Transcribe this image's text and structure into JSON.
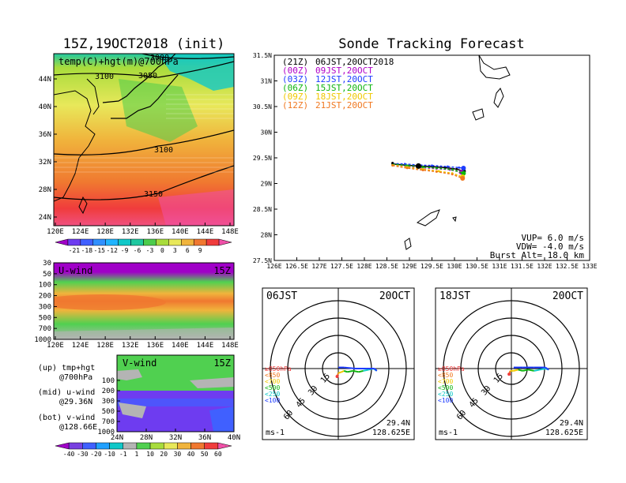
{
  "left_title": "15Z,19OCT2018 (init)",
  "right_title": "Sonde Tracking Forecast",
  "map_panel": {
    "label": "temp(C)+hgt(m)@700hPa",
    "contour_labels": [
      "3000",
      "3050",
      "3100",
      "3100",
      "3150"
    ],
    "lat_ticks": [
      "44N",
      "40N",
      "36N",
      "32N",
      "28N",
      "24N"
    ],
    "lon_ticks": [
      "120E",
      "124E",
      "128E",
      "132E",
      "136E",
      "140E",
      "144E",
      "148E"
    ],
    "colorbar_ticks": [
      "-21",
      "-18",
      "-15",
      "-12",
      "-9",
      "-6",
      "-3",
      "0",
      "3",
      "6",
      "9"
    ],
    "colorbar_colors": [
      "#a000c8",
      "#6e3cf0",
      "#4060ff",
      "#3090ff",
      "#20b4ff",
      "#10c8c8",
      "#20c8a0",
      "#4ccc4c",
      "#a8dc3c",
      "#e8e85a",
      "#f0b43c",
      "#f07830",
      "#f03c3c",
      "#f050a8"
    ]
  },
  "u_panel": {
    "label": "U-wind",
    "time": "15Z",
    "p_ticks": [
      "30",
      "50",
      "100",
      "200",
      "300",
      "500",
      "700",
      "1000"
    ],
    "lon_ticks": [
      "120E",
      "124E",
      "128E",
      "132E",
      "136E",
      "140E",
      "144E",
      "148E"
    ]
  },
  "v_panel": {
    "label": "V-wind",
    "time": "15Z",
    "p_ticks": [
      "100",
      "200",
      "300",
      "500",
      "700",
      "1000"
    ],
    "lat_ticks": [
      "24N",
      "28N",
      "32N",
      "36N",
      "40N"
    ],
    "colorbar_ticks": [
      "-40",
      "-30",
      "-20",
      "-10",
      "-1",
      "1",
      "10",
      "20",
      "30",
      "40",
      "50",
      "60"
    ],
    "colorbar_colors": [
      "#a000c8",
      "#7840e0",
      "#4060ff",
      "#20a0ff",
      "#10c8c8",
      "#b4b4b4",
      "#50d050",
      "#a8dc3c",
      "#e8e85a",
      "#f0b43c",
      "#f07830",
      "#f03c3c",
      "#f050a8"
    ]
  },
  "legend_text": {
    "up1": "(up) tmp+hgt",
    "up2": "@700hPa",
    "mid1": "(mid) u-wind",
    "mid2": "@29.36N",
    "bot1": "(bot) v-wind",
    "bot2": "@128.66E"
  },
  "track_legend": [
    {
      "code": "(21Z)",
      "time": "06JST,20OCT2018",
      "color": "#000000"
    },
    {
      "code": "(00Z)",
      "time": "09JST,20OCT",
      "color": "#b000c8"
    },
    {
      "code": "(03Z)",
      "time": "12JST,20OCT",
      "color": "#1e3cff"
    },
    {
      "code": "(06Z)",
      "time": "15JST,20OCT",
      "color": "#10b410"
    },
    {
      "code": "(09Z)",
      "time": "18JST,20OCT",
      "color": "#f0c800"
    },
    {
      "code": "(12Z)",
      "time": "21JST,20OCT",
      "color": "#f07820"
    }
  ],
  "track_params": {
    "vup": "VUP=  6.0 m/s",
    "vdw": "VDW= -4.0 m/s",
    "burst": "Burst Alt= 18.0 km"
  },
  "chart_data": [
    {
      "type": "line",
      "title": "Sonde Tracking Forecast",
      "xlim": [
        126,
        133
      ],
      "ylim": [
        27.5,
        31.5
      ],
      "x_ticks": [
        "126E",
        "126.5E",
        "127E",
        "127.5E",
        "128E",
        "128.5E",
        "129E",
        "129.5E",
        "130E",
        "130.5E",
        "131E",
        "131.5E",
        "132E",
        "132.5E",
        "133E"
      ],
      "y_ticks": [
        "27.5N",
        "28N",
        "28.5N",
        "29N",
        "29.5N",
        "30N",
        "30.5N",
        "31N",
        "31.5N"
      ],
      "launch_point": {
        "lon": 128.625,
        "lat": 29.4
      },
      "series": [
        {
          "name": "(21Z) 06JST,20OCT2018",
          "color": "#000000",
          "points": [
            [
              128.625,
              29.38
            ],
            [
              128.9,
              29.36
            ],
            [
              129.2,
              29.34
            ],
            [
              129.5,
              29.33
            ],
            [
              129.8,
              29.31
            ],
            [
              130.05,
              29.28
            ],
            [
              130.2,
              29.24
            ]
          ]
        },
        {
          "name": "(00Z) 09JST,20OCT",
          "color": "#b000c8",
          "points": [
            [
              128.625,
              29.37
            ],
            [
              128.95,
              29.33
            ],
            [
              129.25,
              29.31
            ],
            [
              129.6,
              29.29
            ],
            [
              129.9,
              29.27
            ],
            [
              130.15,
              29.22
            ]
          ]
        },
        {
          "name": "(03Z) 12JST,20OCT",
          "color": "#1e3cff",
          "points": [
            [
              128.625,
              29.39
            ],
            [
              128.9,
              29.38
            ],
            [
              129.2,
              29.36
            ],
            [
              129.5,
              29.35
            ],
            [
              129.85,
              29.33
            ],
            [
              130.1,
              29.31
            ],
            [
              130.2,
              29.3
            ]
          ]
        },
        {
          "name": "(06Z) 15JST,20OCT",
          "color": "#10b410",
          "points": [
            [
              128.625,
              29.38
            ],
            [
              128.95,
              29.35
            ],
            [
              129.3,
              29.32
            ],
            [
              129.6,
              29.3
            ],
            [
              129.95,
              29.27
            ],
            [
              130.2,
              29.2
            ]
          ]
        },
        {
          "name": "(09Z) 18JST,20OCT",
          "color": "#f0c800",
          "points": [
            [
              128.625,
              29.36
            ],
            [
              128.95,
              29.32
            ],
            [
              129.3,
              29.28
            ],
            [
              129.65,
              29.24
            ],
            [
              129.95,
              29.2
            ],
            [
              130.18,
              29.13
            ]
          ]
        },
        {
          "name": "(12Z) 21JST,20OCT",
          "color": "#f07820",
          "points": [
            [
              128.625,
              29.35
            ],
            [
              128.95,
              29.3
            ],
            [
              129.3,
              29.26
            ],
            [
              129.6,
              29.23
            ],
            [
              129.95,
              29.18
            ],
            [
              130.18,
              29.1
            ]
          ]
        }
      ]
    },
    {
      "type": "scatter",
      "title": "06JST 20OCT",
      "center_label_lat": "29.4N",
      "center_label_lon": "128.625E",
      "units": "ms-1",
      "ring_labels": [
        "15",
        "30",
        "45",
        "60"
      ],
      "pressure_legend": [
        {
          "label": "≥850hPa",
          "color": "#f03c3c"
        },
        {
          "label": "<850",
          "color": "#f07820"
        },
        {
          "label": "<700",
          "color": "#f0c800"
        },
        {
          "label": "<500",
          "color": "#10b410"
        },
        {
          "label": "<250",
          "color": "#10c8c8"
        },
        {
          "label": "<100",
          "color": "#1e3cff"
        }
      ],
      "hodograph": [
        [
          -1,
          -7,
          "#f03c3c"
        ],
        [
          0,
          -4,
          "#f07820"
        ],
        [
          3,
          -3,
          "#f0c800"
        ],
        [
          5,
          -2,
          "#f0c800"
        ],
        [
          8,
          -3,
          "#10b410"
        ],
        [
          13,
          -2,
          "#10b410"
        ],
        [
          18,
          -3,
          "#10b410"
        ],
        [
          22,
          -2,
          "#10b410"
        ],
        [
          27,
          -1,
          "#10c8c8"
        ],
        [
          31,
          0,
          "#10c8c8"
        ],
        [
          34,
          -2,
          "#10c8c8"
        ],
        [
          32,
          0,
          "#1e3cff"
        ],
        [
          25,
          0,
          "#1e3cff"
        ],
        [
          15,
          0,
          "#1e3cff"
        ],
        [
          5,
          1,
          "#1e3cff"
        ],
        [
          0,
          1,
          "#1e3cff"
        ]
      ]
    },
    {
      "type": "scatter",
      "title": "18JST 20OCT",
      "center_label_lat": "29.4N",
      "center_label_lon": "128.625E",
      "units": "ms-1",
      "ring_labels": [
        "15",
        "30",
        "45",
        "60"
      ],
      "pressure_legend": [
        {
          "label": "≥850hPa",
          "color": "#f03c3c"
        },
        {
          "label": "<850",
          "color": "#f07820"
        },
        {
          "label": "<700",
          "color": "#f0c800"
        },
        {
          "label": "<500",
          "color": "#10b410"
        },
        {
          "label": "<250",
          "color": "#10c8c8"
        },
        {
          "label": "<100",
          "color": "#1e3cff"
        }
      ],
      "hodograph": [
        [
          -2,
          -5,
          "#f03c3c"
        ],
        [
          -1,
          -2,
          "#f07820"
        ],
        [
          2,
          -2,
          "#f0c800"
        ],
        [
          6,
          -1,
          "#f0c800"
        ],
        [
          10,
          -2,
          "#10b410"
        ],
        [
          15,
          -1,
          "#10b410"
        ],
        [
          20,
          -2,
          "#10b410"
        ],
        [
          25,
          -1,
          "#10c8c8"
        ],
        [
          30,
          0,
          "#10c8c8"
        ],
        [
          33,
          -1,
          "#10c8c8"
        ],
        [
          30,
          1,
          "#1e3cff"
        ],
        [
          20,
          1,
          "#1e3cff"
        ],
        [
          10,
          1,
          "#1e3cff"
        ],
        [
          2,
          1,
          "#1e3cff"
        ]
      ]
    }
  ],
  "hodo_labels": {
    "left_time": "06JST",
    "left_date": "20OCT",
    "right_time": "18JST",
    "right_date": "20OCT"
  }
}
